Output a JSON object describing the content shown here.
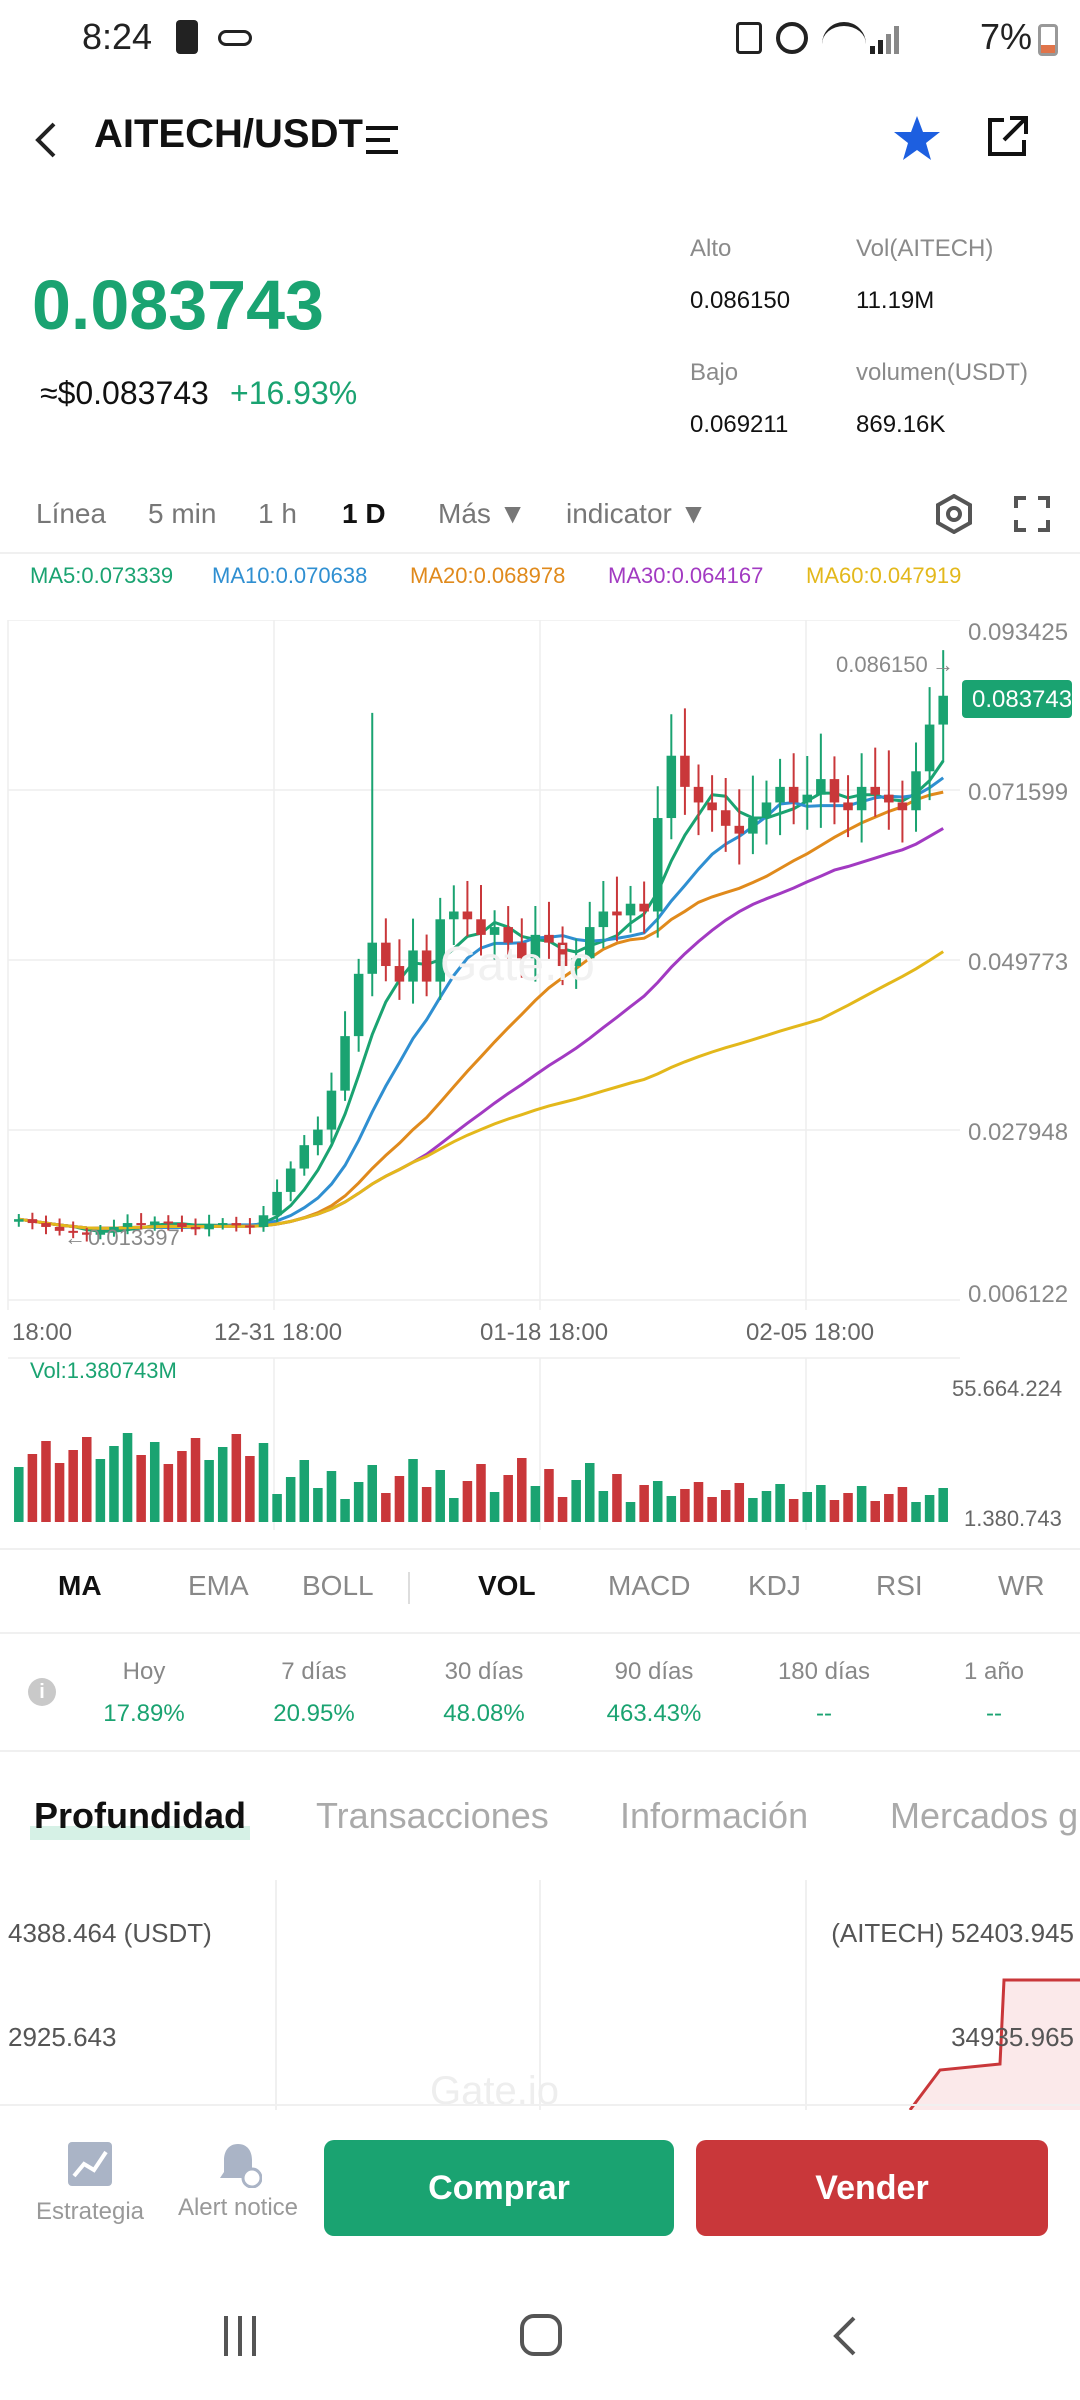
{
  "status": {
    "time": "8:24",
    "battery": "7%"
  },
  "header": {
    "pair": "AITECH/USDT"
  },
  "price": {
    "last": "0.083743",
    "usd": "≈$0.083743",
    "change": "+16.93%"
  },
  "stats": {
    "high_label": "Alto",
    "high": "0.086150",
    "vol_base_label": "Vol(AITECH)",
    "vol_base": "11.19M",
    "low_label": "Bajo",
    "low": "0.069211",
    "vol_quote_label": "volumen(USDT)",
    "vol_quote": "869.16K"
  },
  "timeframes": [
    "Línea",
    "5 min",
    "1 h",
    "1 D",
    "Más",
    "indicator"
  ],
  "ma": {
    "ma5": "MA5:0.073339",
    "ma10": "MA10:0.070638",
    "ma20": "MA20:0.068978",
    "ma30": "MA30:0.064167",
    "ma60": "MA60:0.047919"
  },
  "chart_data": {
    "type": "candlestick",
    "y_ticks": [
      "0.093425",
      "0.071599",
      "0.049773",
      "0.027948",
      "0.006122"
    ],
    "x_ticks": [
      "18:00",
      "12-31 18:00",
      "01-18 18:00",
      "02-05 18:00"
    ],
    "high_marker": "0.086150",
    "low_marker": "0.013397",
    "last_price_tag": "0.083743",
    "volume_label": "Vol:1.380743M",
    "volume_ticks": [
      "55.664.224",
      "1.380.743"
    ]
  },
  "indicators": [
    "MA",
    "EMA",
    "BOLL",
    "VOL",
    "MACD",
    "KDJ",
    "RSI",
    "WR"
  ],
  "ranges": [
    {
      "label": "Hoy",
      "value": "17.89%"
    },
    {
      "label": "7 días",
      "value": "20.95%"
    },
    {
      "label": "30 días",
      "value": "48.08%"
    },
    {
      "label": "90 días",
      "value": "463.43%"
    },
    {
      "label": "180 días",
      "value": "--"
    },
    {
      "label": "1 año",
      "value": "--"
    }
  ],
  "sections": [
    "Profundidad",
    "Transacciones",
    "Información",
    "Mercados g"
  ],
  "depth": {
    "left_top": "4388.464 (USDT)",
    "left_mid": "2925.643",
    "right_top": "(AITECH) 52403.945",
    "right_mid": "34935.965"
  },
  "bottom": {
    "strategy": "Estrategia",
    "alert": "Alert notice",
    "buy": "Comprar",
    "sell": "Vender"
  },
  "colors": {
    "green": "#1aa371",
    "red": "#c9373a",
    "ma5": "#1aa371",
    "ma10": "#2f8fd1",
    "ma20": "#e08a1c",
    "ma30": "#a23ac2",
    "ma60": "#e3b81b"
  }
}
